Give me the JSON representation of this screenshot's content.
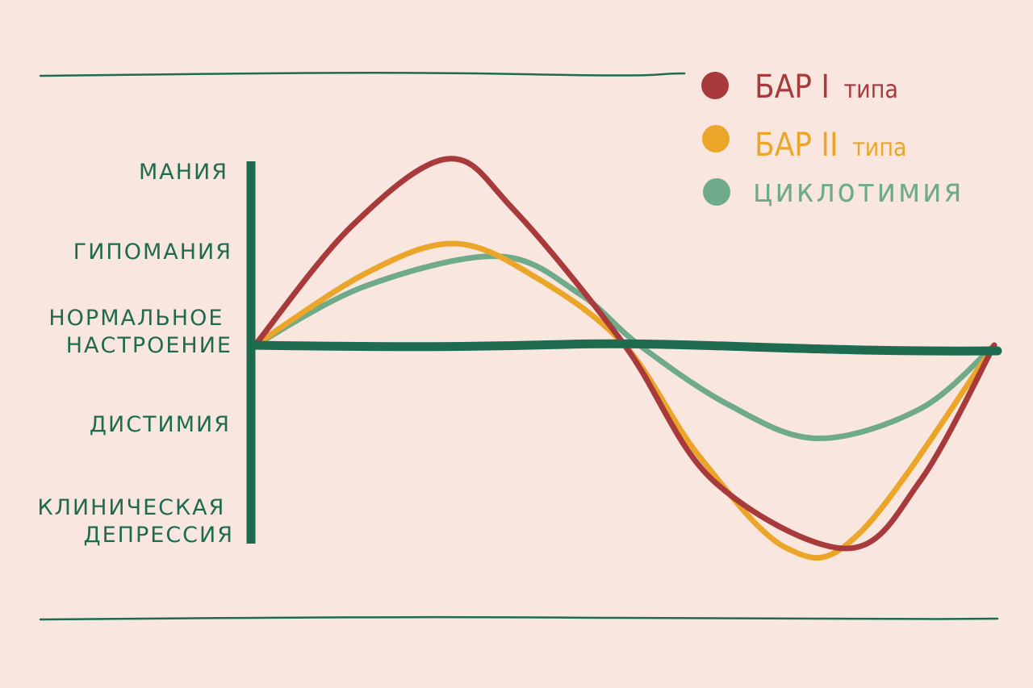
{
  "chart_data": {
    "type": "line",
    "title": "",
    "xlabel": "",
    "ylabel": "",
    "y_levels": [
      {
        "value": 2,
        "label_lines": [
          "МАНИЯ"
        ]
      },
      {
        "value": 1,
        "label_lines": [
          "ГИПОМАНИЯ"
        ]
      },
      {
        "value": 0,
        "label_lines": [
          "НОРМАЛЬНОЕ",
          "НАСТРОЕНИЕ"
        ]
      },
      {
        "value": -1,
        "label_lines": [
          "ДИСТИМИЯ"
        ]
      },
      {
        "value": -2,
        "label_lines": [
          "КЛИНИЧЕСКАЯ",
          "ДЕПРЕССИЯ"
        ]
      }
    ],
    "ylim": [
      -2.4,
      2.4
    ],
    "xlim": [
      0,
      1
    ],
    "grid": false,
    "legend_position": "top-right",
    "series": [
      {
        "name": "БАР I типа",
        "color": "#a83a3c",
        "points": [
          [
            0,
            0
          ],
          [
            0.13,
            1.4
          ],
          [
            0.26,
            2.2
          ],
          [
            0.35,
            1.6
          ],
          [
            0.5,
            0
          ],
          [
            0.62,
            -1.6
          ],
          [
            0.8,
            -2.4
          ],
          [
            0.9,
            -1.6
          ],
          [
            1,
            0
          ]
        ]
      },
      {
        "name": "БАР II типа",
        "color": "#eba62a",
        "points": [
          [
            0,
            0
          ],
          [
            0.15,
            0.85
          ],
          [
            0.27,
            1.2
          ],
          [
            0.38,
            0.8
          ],
          [
            0.5,
            0
          ],
          [
            0.6,
            -1.3
          ],
          [
            0.72,
            -2.4
          ],
          [
            0.82,
            -2.2
          ],
          [
            1,
            0
          ]
        ]
      },
      {
        "name": "циклотимия",
        "color": "#6fab8a",
        "points": [
          [
            0,
            0
          ],
          [
            0.15,
            0.7
          ],
          [
            0.33,
            1.05
          ],
          [
            0.44,
            0.6
          ],
          [
            0.52,
            0
          ],
          [
            0.64,
            -0.7
          ],
          [
            0.76,
            -1.1
          ],
          [
            0.9,
            -0.75
          ],
          [
            1,
            0
          ]
        ]
      }
    ]
  },
  "legend": {
    "items": [
      {
        "label_main": "БАР I",
        "label_suffix": "типа",
        "color": "#a83a3c"
      },
      {
        "label_main": "БАР II",
        "label_suffix": "типа",
        "color": "#eba62a"
      },
      {
        "label_main": "циклотимия",
        "label_suffix": "",
        "color": "#6fab8a"
      }
    ]
  },
  "colors": {
    "background": "#f9e6df",
    "axis": "#1e6b4f"
  }
}
